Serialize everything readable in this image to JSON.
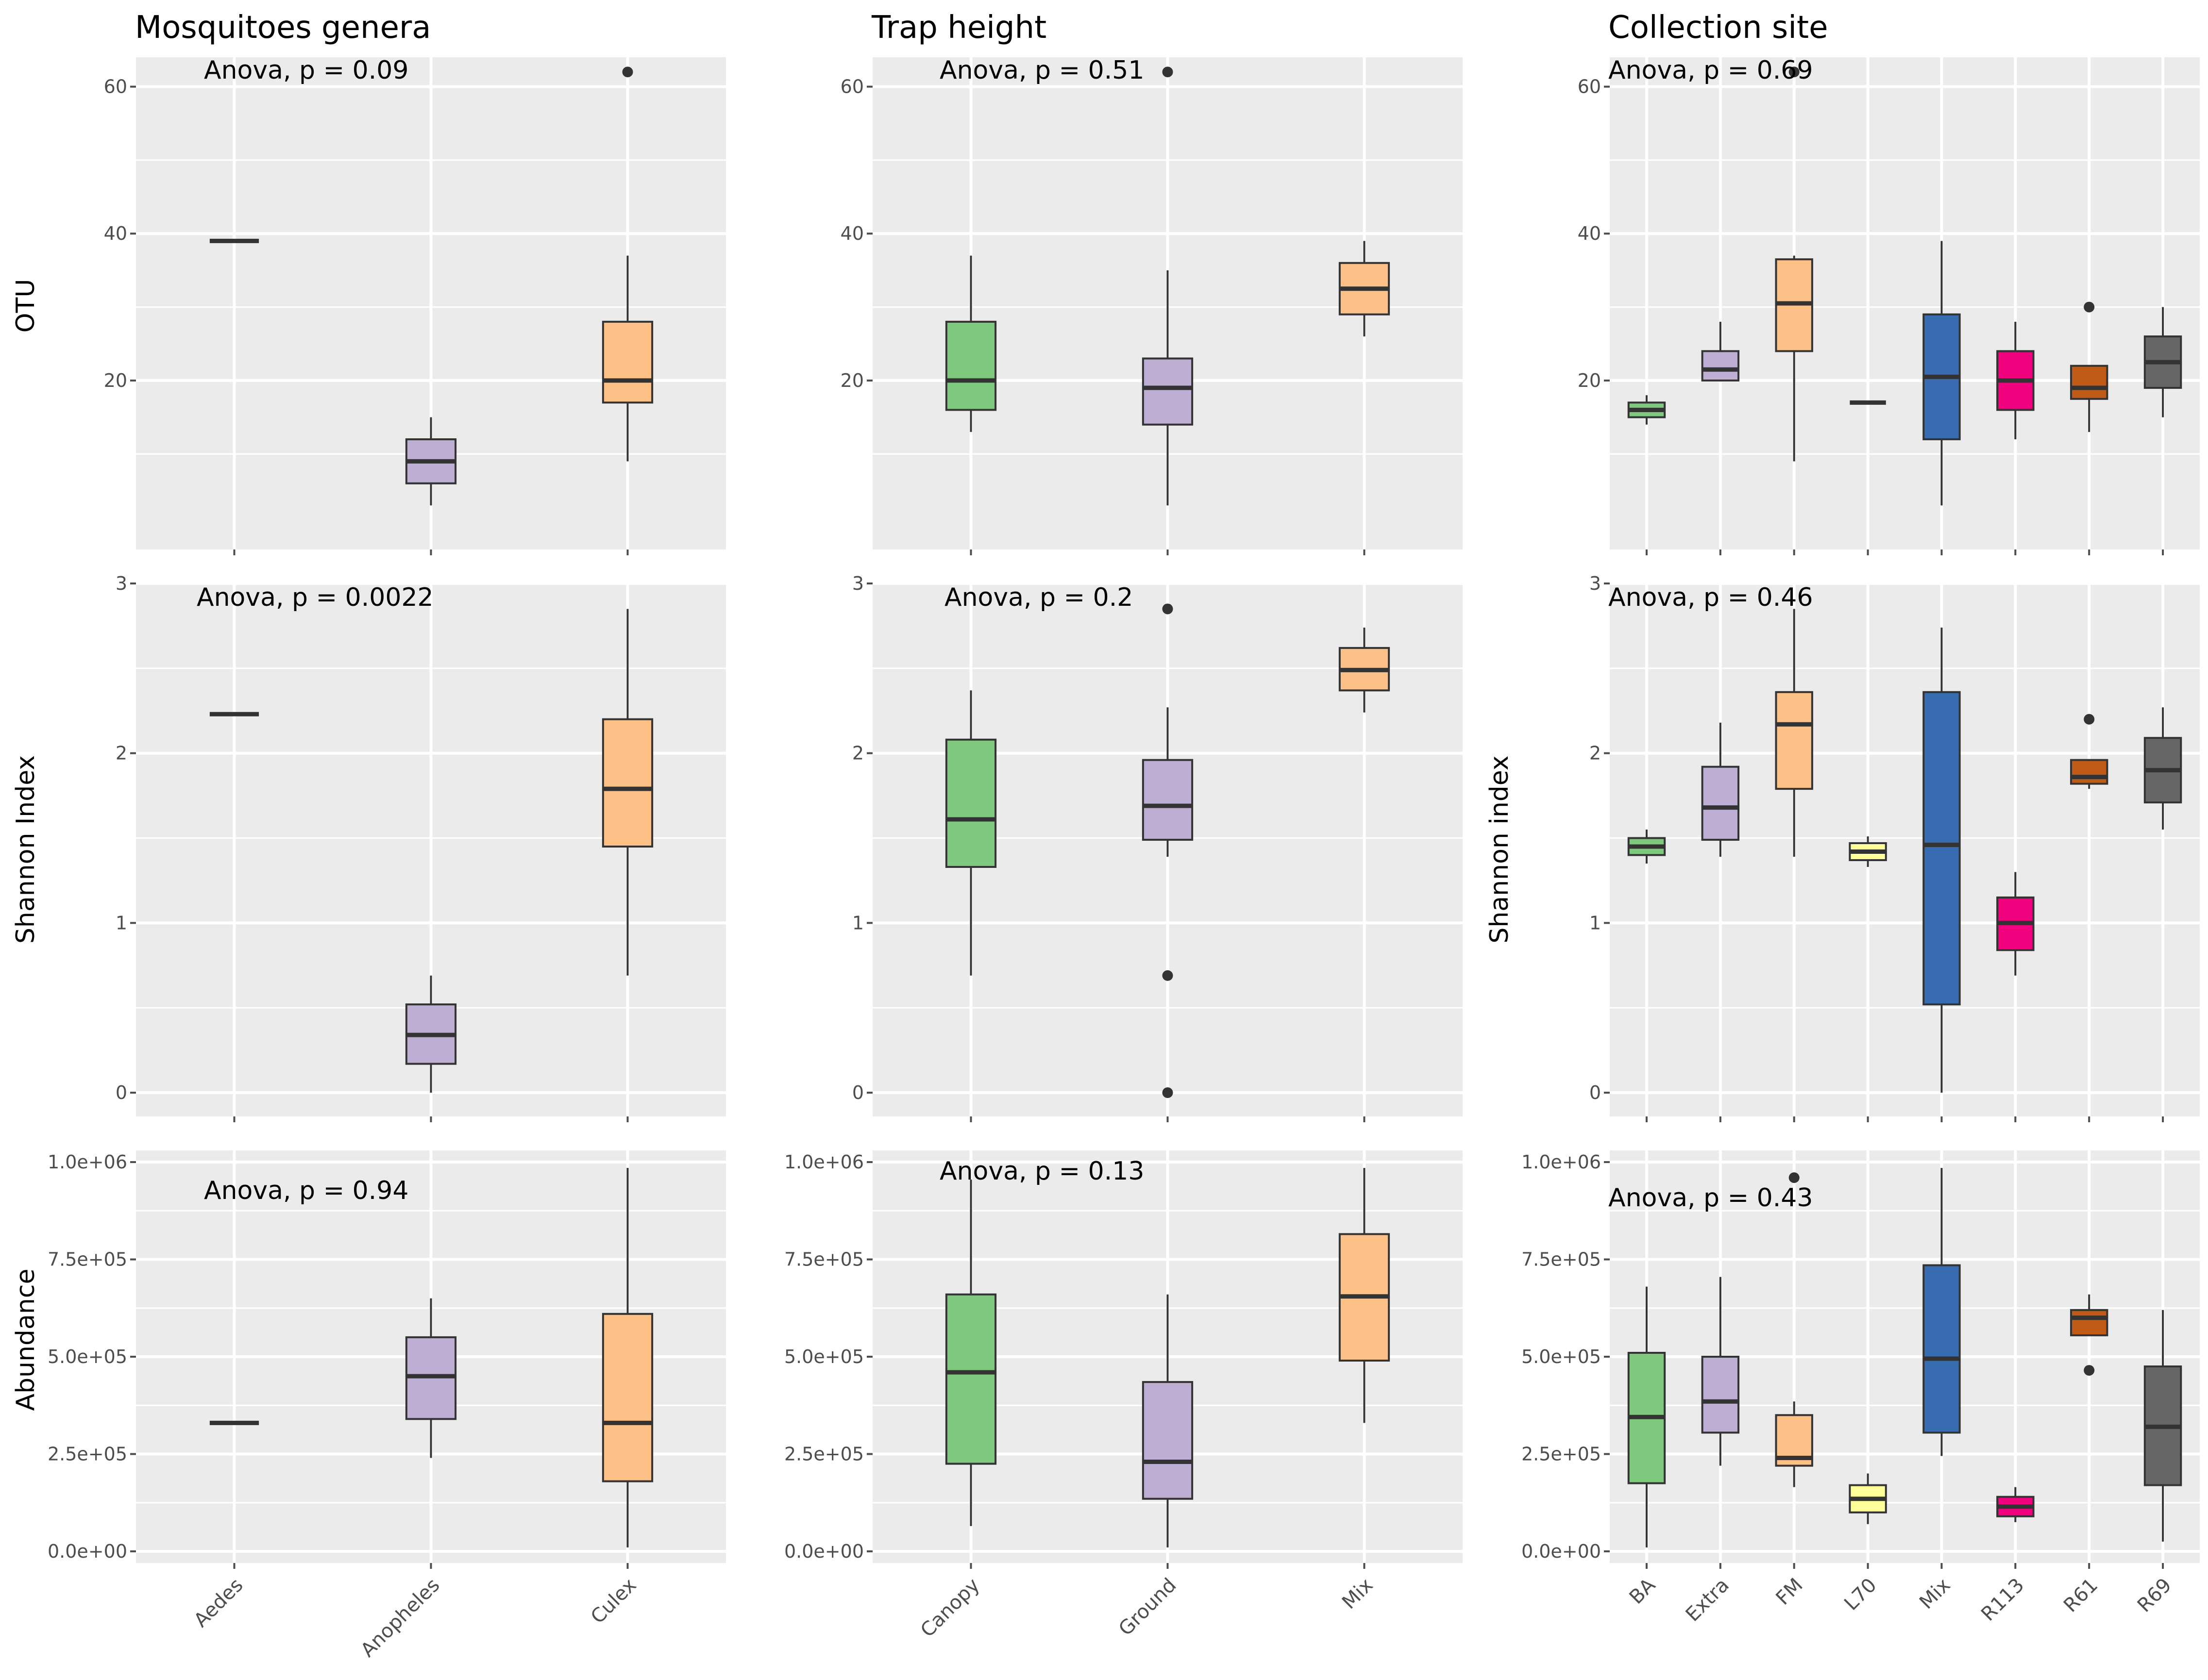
{
  "figure": {
    "background": "#ffffff",
    "panel_background": "#ebebeb",
    "columns": [
      {
        "title": "Mosquitoes genera",
        "x_categories": [
          "Aedes",
          "Anopheles",
          "Culex"
        ]
      },
      {
        "title": "Trap height",
        "x_categories": [
          "Canopy",
          "Ground",
          "Mix"
        ]
      },
      {
        "title": "Collection site",
        "x_categories": [
          "BA",
          "Extra",
          "FM",
          "L70",
          "Mix",
          "R113",
          "R61",
          "R69"
        ]
      }
    ],
    "row_labels": [
      {
        "left": "OTU",
        "right": ""
      },
      {
        "left": "Shannon Index",
        "right": "Shannon index"
      },
      {
        "left": "Abundance",
        "right": ""
      }
    ]
  },
  "chart_data": [
    {
      "type": "boxplot",
      "row": 0,
      "col": 0,
      "ylabel": "OTU",
      "annotation": "Anova, p = 0.09",
      "ylim": [
        -3,
        64
      ],
      "y_ticks": [
        20,
        40,
        60
      ],
      "y_tick_labels": [
        "20",
        "40",
        "60"
      ],
      "categories": [
        "Aedes",
        "Anopheles",
        "Culex"
      ],
      "boxes": [
        {
          "category": "Aedes",
          "color": "#7fc97f",
          "min": 39,
          "q1": 39,
          "median": 39,
          "q3": 39,
          "max": 39,
          "outliers": []
        },
        {
          "category": "Anopheles",
          "color": "#beaed4",
          "min": 3,
          "q1": 6,
          "median": 9,
          "q3": 12,
          "max": 15,
          "outliers": []
        },
        {
          "category": "Culex",
          "color": "#fdc086",
          "min": 9,
          "q1": 17,
          "median": 20,
          "q3": 28,
          "max": 37,
          "outliers": [
            62
          ]
        }
      ]
    },
    {
      "type": "boxplot",
      "row": 0,
      "col": 1,
      "ylabel": "",
      "annotation": "Anova, p = 0.51",
      "ylim": [
        -3,
        64
      ],
      "y_ticks": [
        20,
        40,
        60
      ],
      "y_tick_labels": [
        "20",
        "40",
        "60"
      ],
      "categories": [
        "Canopy",
        "Ground",
        "Mix"
      ],
      "boxes": [
        {
          "category": "Canopy",
          "color": "#7fc97f",
          "min": 13,
          "q1": 16,
          "median": 20,
          "q3": 28,
          "max": 37,
          "outliers": []
        },
        {
          "category": "Ground",
          "color": "#beaed4",
          "min": 3,
          "q1": 14,
          "median": 19,
          "q3": 23,
          "max": 35,
          "outliers": [
            62
          ]
        },
        {
          "category": "Mix",
          "color": "#fdc086",
          "min": 26,
          "q1": 29,
          "median": 32.5,
          "q3": 36,
          "max": 39,
          "outliers": []
        }
      ]
    },
    {
      "type": "boxplot",
      "row": 0,
      "col": 2,
      "ylabel": "",
      "annotation": "Anova, p = 0.69",
      "ylim": [
        -3,
        64
      ],
      "y_ticks": [
        20,
        40,
        60
      ],
      "y_tick_labels": [
        "20",
        "40",
        "60"
      ],
      "categories": [
        "BA",
        "Extra",
        "FM",
        "L70",
        "Mix",
        "R113",
        "R61",
        "R69"
      ],
      "boxes": [
        {
          "category": "BA",
          "color": "#7fc97f",
          "min": 14,
          "q1": 15,
          "median": 16,
          "q3": 17,
          "max": 18,
          "outliers": []
        },
        {
          "category": "Extra",
          "color": "#beaed4",
          "min": 20,
          "q1": 20,
          "median": 21.5,
          "q3": 24,
          "max": 28,
          "outliers": []
        },
        {
          "category": "FM",
          "color": "#fdc086",
          "min": 9,
          "q1": 24,
          "median": 30.5,
          "q3": 36.5,
          "max": 37,
          "outliers": [
            62
          ]
        },
        {
          "category": "L70",
          "color": "#ffff99",
          "min": 17,
          "q1": 17,
          "median": 17,
          "q3": 17,
          "max": 17,
          "outliers": []
        },
        {
          "category": "Mix",
          "color": "#386cb0",
          "min": 3,
          "q1": 12,
          "median": 20.5,
          "q3": 29,
          "max": 39,
          "outliers": []
        },
        {
          "category": "R113",
          "color": "#f0027f",
          "min": 12,
          "q1": 16,
          "median": 20,
          "q3": 24,
          "max": 28,
          "outliers": []
        },
        {
          "category": "R61",
          "color": "#bf5b17",
          "min": 13,
          "q1": 17.5,
          "median": 19,
          "q3": 22,
          "max": 22,
          "outliers": [
            30
          ]
        },
        {
          "category": "R69",
          "color": "#666666",
          "min": 15,
          "q1": 19,
          "median": 22.5,
          "q3": 26,
          "max": 30,
          "outliers": []
        }
      ]
    },
    {
      "type": "boxplot",
      "row": 1,
      "col": 0,
      "ylabel": "Shannon Index",
      "annotation": "Anova, p = 0.0022",
      "ylim": [
        -0.14,
        3.0
      ],
      "y_ticks": [
        0,
        1,
        2,
        3
      ],
      "y_tick_labels": [
        "0",
        "1",
        "2",
        "3"
      ],
      "categories": [
        "Aedes",
        "Anopheles",
        "Culex"
      ],
      "boxes": [
        {
          "category": "Aedes",
          "color": "#7fc97f",
          "min": 2.23,
          "q1": 2.23,
          "median": 2.23,
          "q3": 2.23,
          "max": 2.23,
          "outliers": []
        },
        {
          "category": "Anopheles",
          "color": "#beaed4",
          "min": 0.0,
          "q1": 0.17,
          "median": 0.34,
          "q3": 0.52,
          "max": 0.69,
          "outliers": []
        },
        {
          "category": "Culex",
          "color": "#fdc086",
          "min": 0.69,
          "q1": 1.45,
          "median": 1.79,
          "q3": 2.2,
          "max": 2.85,
          "outliers": []
        }
      ]
    },
    {
      "type": "boxplot",
      "row": 1,
      "col": 1,
      "ylabel": "",
      "annotation": "Anova, p = 0.2",
      "ylim": [
        -0.14,
        3.0
      ],
      "y_ticks": [
        0,
        1,
        2,
        3
      ],
      "y_tick_labels": [
        "0",
        "1",
        "2",
        "3"
      ],
      "categories": [
        "Canopy",
        "Ground",
        "Mix"
      ],
      "boxes": [
        {
          "category": "Canopy",
          "color": "#7fc97f",
          "min": 0.69,
          "q1": 1.33,
          "median": 1.61,
          "q3": 2.08,
          "max": 2.37,
          "outliers": []
        },
        {
          "category": "Ground",
          "color": "#beaed4",
          "min": 1.39,
          "q1": 1.49,
          "median": 1.69,
          "q3": 1.96,
          "max": 2.27,
          "outliers": [
            2.85,
            0.69,
            0.0
          ]
        },
        {
          "category": "Mix",
          "color": "#fdc086",
          "min": 2.24,
          "q1": 2.37,
          "median": 2.49,
          "q3": 2.62,
          "max": 2.74,
          "outliers": []
        }
      ]
    },
    {
      "type": "boxplot",
      "row": 1,
      "col": 2,
      "ylabel": "Shannon index",
      "annotation": "Anova, p = 0.46",
      "ylim": [
        -0.14,
        3.0
      ],
      "y_ticks": [
        0,
        1,
        2,
        3
      ],
      "y_tick_labels": [
        "0",
        "1",
        "2",
        "3"
      ],
      "categories": [
        "BA",
        "Extra",
        "FM",
        "L70",
        "Mix",
        "R113",
        "R61",
        "R69"
      ],
      "boxes": [
        {
          "category": "BA",
          "color": "#7fc97f",
          "min": 1.35,
          "q1": 1.4,
          "median": 1.45,
          "q3": 1.5,
          "max": 1.55,
          "outliers": []
        },
        {
          "category": "Extra",
          "color": "#beaed4",
          "min": 1.39,
          "q1": 1.49,
          "median": 1.68,
          "q3": 1.92,
          "max": 2.18,
          "outliers": []
        },
        {
          "category": "FM",
          "color": "#fdc086",
          "min": 1.39,
          "q1": 1.79,
          "median": 2.17,
          "q3": 2.36,
          "max": 2.85,
          "outliers": []
        },
        {
          "category": "L70",
          "color": "#ffff99",
          "min": 1.33,
          "q1": 1.37,
          "median": 1.42,
          "q3": 1.47,
          "max": 1.51,
          "outliers": []
        },
        {
          "category": "Mix",
          "color": "#386cb0",
          "min": 0.0,
          "q1": 0.52,
          "median": 1.46,
          "q3": 2.36,
          "max": 2.74,
          "outliers": []
        },
        {
          "category": "R113",
          "color": "#f0027f",
          "min": 0.69,
          "q1": 0.84,
          "median": 1.0,
          "q3": 1.15,
          "max": 1.3,
          "outliers": []
        },
        {
          "category": "R61",
          "color": "#bf5b17",
          "min": 1.79,
          "q1": 1.82,
          "median": 1.86,
          "q3": 1.96,
          "max": 1.96,
          "outliers": [
            2.2
          ]
        },
        {
          "category": "R69",
          "color": "#666666",
          "min": 1.55,
          "q1": 1.71,
          "median": 1.9,
          "q3": 2.09,
          "max": 2.27,
          "outliers": []
        }
      ]
    },
    {
      "type": "boxplot",
      "row": 2,
      "col": 0,
      "ylabel": "Abundance",
      "annotation": "Anova, p = 0.94",
      "ylim": [
        -30000,
        1030000
      ],
      "y_ticks": [
        0,
        250000,
        500000,
        750000,
        1000000
      ],
      "y_tick_labels": [
        "0.0e+00",
        "2.5e+05",
        "5.0e+05",
        "7.5e+05",
        "1.0e+06"
      ],
      "categories": [
        "Aedes",
        "Anopheles",
        "Culex"
      ],
      "boxes": [
        {
          "category": "Aedes",
          "color": "#7fc97f",
          "min": 330000,
          "q1": 330000,
          "median": 330000,
          "q3": 330000,
          "max": 330000,
          "outliers": []
        },
        {
          "category": "Anopheles",
          "color": "#beaed4",
          "min": 240000,
          "q1": 340000,
          "median": 450000,
          "q3": 550000,
          "max": 650000,
          "outliers": []
        },
        {
          "category": "Culex",
          "color": "#fdc086",
          "min": 10000,
          "q1": 180000,
          "median": 330000,
          "q3": 610000,
          "max": 985000,
          "outliers": []
        }
      ]
    },
    {
      "type": "boxplot",
      "row": 2,
      "col": 1,
      "ylabel": "",
      "annotation": "Anova, p = 0.13",
      "ylim": [
        -30000,
        1030000
      ],
      "y_ticks": [
        0,
        250000,
        500000,
        750000,
        1000000
      ],
      "y_tick_labels": [
        "0.0e+00",
        "2.5e+05",
        "5.0e+05",
        "7.5e+05",
        "1.0e+06"
      ],
      "categories": [
        "Canopy",
        "Ground",
        "Mix"
      ],
      "boxes": [
        {
          "category": "Canopy",
          "color": "#7fc97f",
          "min": 65000,
          "q1": 225000,
          "median": 460000,
          "q3": 660000,
          "max": 955000,
          "outliers": []
        },
        {
          "category": "Ground",
          "color": "#beaed4",
          "min": 10000,
          "q1": 135000,
          "median": 230000,
          "q3": 435000,
          "max": 660000,
          "outliers": []
        },
        {
          "category": "Mix",
          "color": "#fdc086",
          "min": 330000,
          "q1": 490000,
          "median": 655000,
          "q3": 815000,
          "max": 985000,
          "outliers": []
        }
      ]
    },
    {
      "type": "boxplot",
      "row": 2,
      "col": 2,
      "ylabel": "",
      "annotation": "Anova, p = 0.43",
      "ylim": [
        -30000,
        1030000
      ],
      "y_ticks": [
        0,
        250000,
        500000,
        750000,
        1000000
      ],
      "y_tick_labels": [
        "0.0e+00",
        "2.5e+05",
        "5.0e+05",
        "7.5e+05",
        "1.0e+06"
      ],
      "categories": [
        "BA",
        "Extra",
        "FM",
        "L70",
        "Mix",
        "R113",
        "R61",
        "R69"
      ],
      "boxes": [
        {
          "category": "BA",
          "color": "#7fc97f",
          "min": 10000,
          "q1": 175000,
          "median": 345000,
          "q3": 510000,
          "max": 680000,
          "outliers": []
        },
        {
          "category": "Extra",
          "color": "#beaed4",
          "min": 220000,
          "q1": 305000,
          "median": 385000,
          "q3": 500000,
          "max": 705000,
          "outliers": []
        },
        {
          "category": "FM",
          "color": "#fdc086",
          "min": 165000,
          "q1": 220000,
          "median": 240000,
          "q3": 350000,
          "max": 385000,
          "outliers": [
            960000
          ]
        },
        {
          "category": "L70",
          "color": "#ffff99",
          "min": 70000,
          "q1": 100000,
          "median": 135000,
          "q3": 170000,
          "max": 200000,
          "outliers": []
        },
        {
          "category": "Mix",
          "color": "#386cb0",
          "min": 245000,
          "q1": 305000,
          "median": 495000,
          "q3": 735000,
          "max": 985000,
          "outliers": []
        },
        {
          "category": "R113",
          "color": "#f0027f",
          "min": 75000,
          "q1": 90000,
          "median": 115000,
          "q3": 140000,
          "max": 165000,
          "outliers": []
        },
        {
          "category": "R61",
          "color": "#bf5b17",
          "min": 555000,
          "q1": 555000,
          "median": 600000,
          "q3": 620000,
          "max": 660000,
          "outliers": [
            465000
          ]
        },
        {
          "category": "R69",
          "color": "#666666",
          "min": 25000,
          "q1": 170000,
          "median": 320000,
          "q3": 475000,
          "max": 620000,
          "outliers": []
        }
      ]
    }
  ]
}
